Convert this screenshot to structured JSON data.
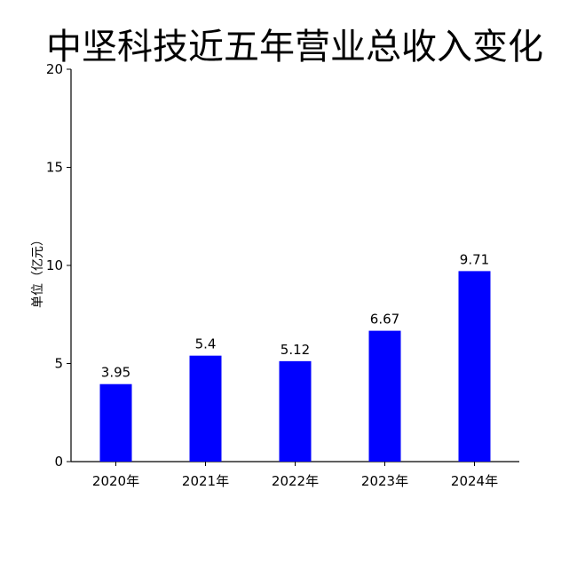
{
  "chart_data": {
    "type": "bar",
    "title": "中坚科技近五年营业总收入变化",
    "xlabel": "",
    "ylabel": "单位（亿元）",
    "categories": [
      "2020年",
      "2021年",
      "2022年",
      "2023年",
      "2024年"
    ],
    "values": [
      3.95,
      5.4,
      5.12,
      6.67,
      9.71
    ],
    "data_labels": [
      "3.95",
      "5.4",
      "5.12",
      "6.67",
      "9.71"
    ],
    "ylim": [
      0,
      20
    ],
    "yticks": [
      0,
      5,
      10,
      15,
      20
    ],
    "bar_color": "#0000ff",
    "grid": false,
    "legend": "none"
  }
}
